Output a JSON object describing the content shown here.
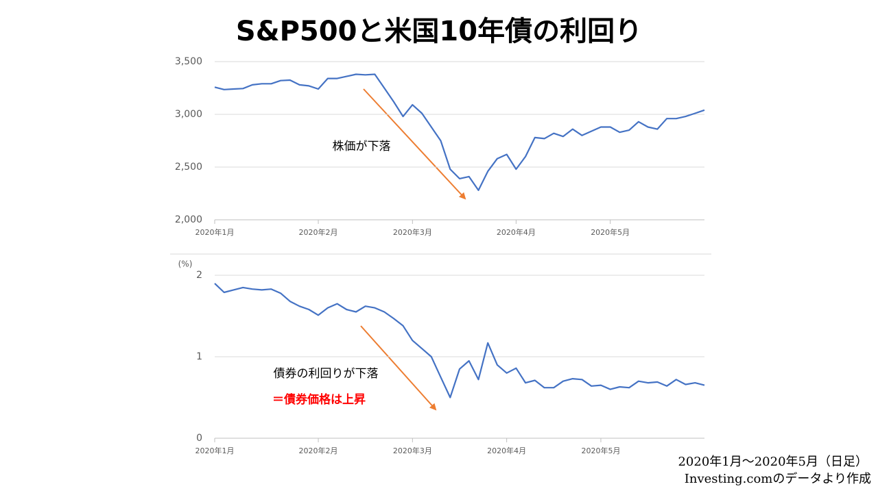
{
  "title": "S&P500と米国10年債の利回り",
  "source": [
    "2020年1月～2020年5月（日足）",
    "Investing.comのデータより作成"
  ],
  "chart_data": [
    {
      "type": "line",
      "annotations": [
        "株価が下落"
      ],
      "categories": [
        "2020年1月",
        null,
        null,
        null,
        null,
        null,
        null,
        null,
        null,
        null,
        null,
        "2020年2月",
        null,
        null,
        null,
        null,
        null,
        null,
        null,
        null,
        null,
        "2020年3月",
        null,
        null,
        null,
        null,
        null,
        null,
        null,
        null,
        null,
        null,
        "2020年4月",
        null,
        null,
        null,
        null,
        null,
        null,
        null,
        null,
        null,
        "2020年5月",
        null,
        null,
        null,
        null,
        null,
        null,
        null,
        null,
        null,
        null
      ],
      "series": [
        {
          "name": "S&P500",
          "color": "#4472c4",
          "values": [
            3258,
            3235,
            3240,
            3245,
            3280,
            3290,
            3290,
            3320,
            3325,
            3280,
            3270,
            3240,
            3340,
            3340,
            3360,
            3380,
            3375,
            3380,
            3250,
            3120,
            2980,
            3090,
            3010,
            2880,
            2750,
            2480,
            2390,
            2410,
            2280,
            2460,
            2580,
            2620,
            2480,
            2600,
            2780,
            2770,
            2820,
            2790,
            2860,
            2800,
            2840,
            2880,
            2880,
            2830,
            2850,
            2930,
            2880,
            2860,
            2960,
            2960,
            2980,
            3010,
            3040
          ]
        }
      ],
      "ylim": [
        2000,
        3500
      ],
      "yticks": [
        {
          "value": 2000,
          "label": "2,000"
        },
        {
          "value": 2500,
          "label": "2,500"
        },
        {
          "value": 3000,
          "label": "3,000"
        },
        {
          "value": 3500,
          "label": "3,500"
        }
      ],
      "grid": true
    },
    {
      "type": "line",
      "y_label": "(%)",
      "annotations": [
        "債券の利回りが下落",
        "＝債券価格は上昇"
      ],
      "categories": [
        "2020年1月",
        null,
        null,
        null,
        null,
        null,
        null,
        null,
        null,
        null,
        null,
        "2020年2月",
        null,
        null,
        null,
        null,
        null,
        null,
        null,
        null,
        null,
        "2020年3月",
        null,
        null,
        null,
        null,
        null,
        null,
        null,
        null,
        null,
        "2020年4月",
        null,
        null,
        null,
        null,
        null,
        null,
        null,
        null,
        null,
        "2020年5月",
        null,
        null,
        null,
        null,
        null,
        null,
        null,
        null,
        null,
        null,
        null
      ],
      "series": [
        {
          "name": "米国10年債利回り",
          "color": "#4472c4",
          "values": [
            1.9,
            1.79,
            1.82,
            1.85,
            1.83,
            1.82,
            1.83,
            1.78,
            1.68,
            1.62,
            1.58,
            1.51,
            1.6,
            1.65,
            1.58,
            1.55,
            1.62,
            1.6,
            1.55,
            1.47,
            1.38,
            1.2,
            1.1,
            1.0,
            0.75,
            0.5,
            0.85,
            0.95,
            0.72,
            1.17,
            0.9,
            0.8,
            0.86,
            0.68,
            0.71,
            0.62,
            0.62,
            0.7,
            0.73,
            0.72,
            0.64,
            0.65,
            0.6,
            0.63,
            0.62,
            0.7,
            0.68,
            0.69,
            0.64,
            0.72,
            0.66,
            0.68,
            0.65
          ]
        }
      ],
      "ylim": [
        0,
        2
      ],
      "yticks": [
        0,
        1,
        2
      ],
      "grid": true
    }
  ]
}
